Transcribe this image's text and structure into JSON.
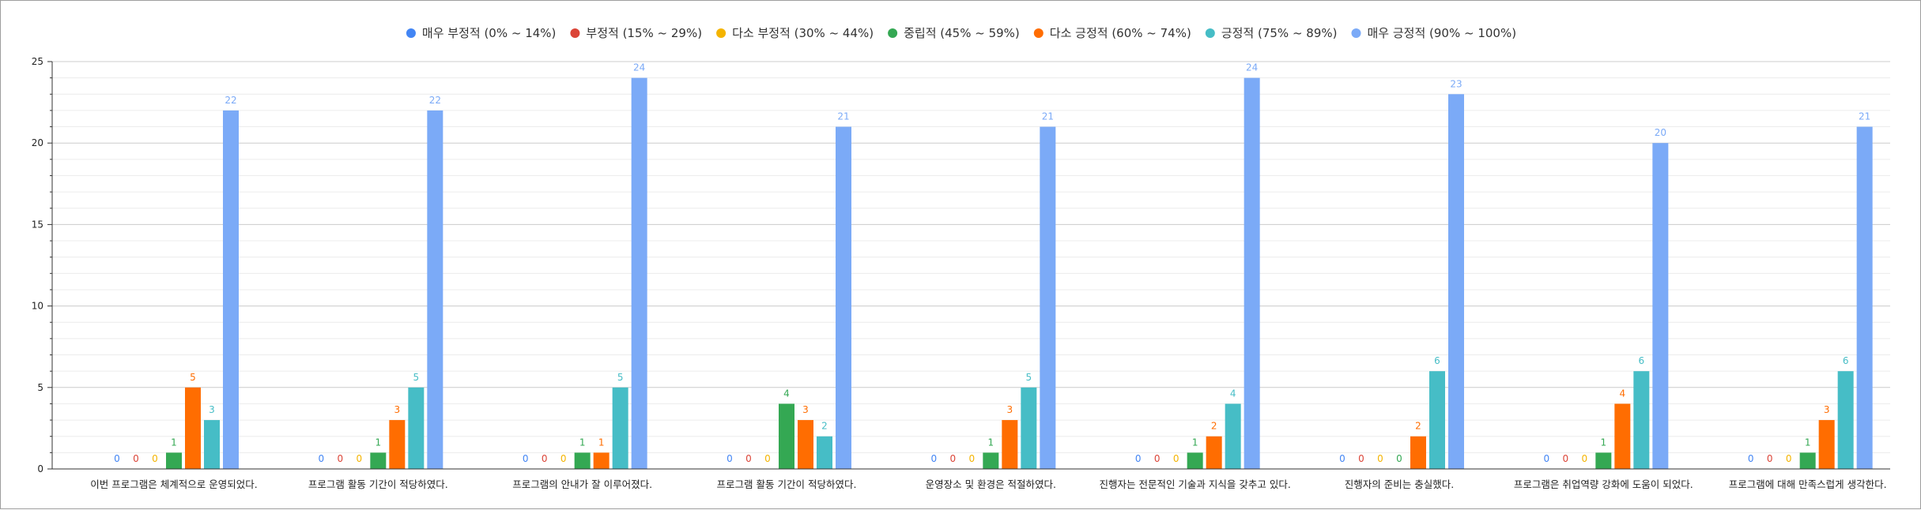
{
  "chart_data": {
    "type": "bar",
    "legend_position": "top",
    "grid": true,
    "ylim": [
      0,
      25
    ],
    "yticks": [
      0,
      5,
      10,
      15,
      20,
      25
    ],
    "categories": [
      "이번 프로그램은 체계적으로 운영되었다.",
      "프로그램 활동 기간이 적당하였다.",
      "프로그램의 안내가 잘 이루어졌다.",
      "프로그램 활동 기간이 적당하였다.",
      "운영장소 및 환경은 적절하였다.",
      "진행자는 전문적인 기술과 지식을 갖추고 있다.",
      "진행자의 준비는 충실했다.",
      "프로그램은 취업역량 강화에 도움이 되었다.",
      "프로그램에 대해 만족스럽게 생각한다."
    ],
    "series": [
      {
        "name": "매우 부정적 (0% ~ 14%)",
        "color": "#4285f4",
        "values": [
          0,
          0,
          0,
          0,
          0,
          0,
          0,
          0,
          0
        ]
      },
      {
        "name": "부정적 (15% ~ 29%)",
        "color": "#db4437",
        "values": [
          0,
          0,
          0,
          0,
          0,
          0,
          0,
          0,
          0
        ]
      },
      {
        "name": "다소 부정적 (30% ~ 44%)",
        "color": "#f4b400",
        "values": [
          0,
          0,
          0,
          0,
          0,
          0,
          0,
          0,
          0
        ]
      },
      {
        "name": "중립적 (45% ~ 59%)",
        "color": "#34a853",
        "values": [
          1,
          1,
          1,
          4,
          1,
          1,
          0,
          1,
          1
        ]
      },
      {
        "name": "다소 긍정적 (60% ~ 74%)",
        "color": "#ff6d01",
        "values": [
          5,
          3,
          1,
          3,
          3,
          2,
          2,
          4,
          3
        ]
      },
      {
        "name": "긍정적 (75% ~ 89%)",
        "color": "#46bdc6",
        "values": [
          3,
          5,
          5,
          2,
          5,
          4,
          6,
          6,
          6
        ]
      },
      {
        "name": "매우 긍정적 (90% ~ 100%)",
        "color": "#7baaf7",
        "values": [
          22,
          22,
          24,
          21,
          21,
          24,
          23,
          20,
          21
        ]
      }
    ]
  }
}
